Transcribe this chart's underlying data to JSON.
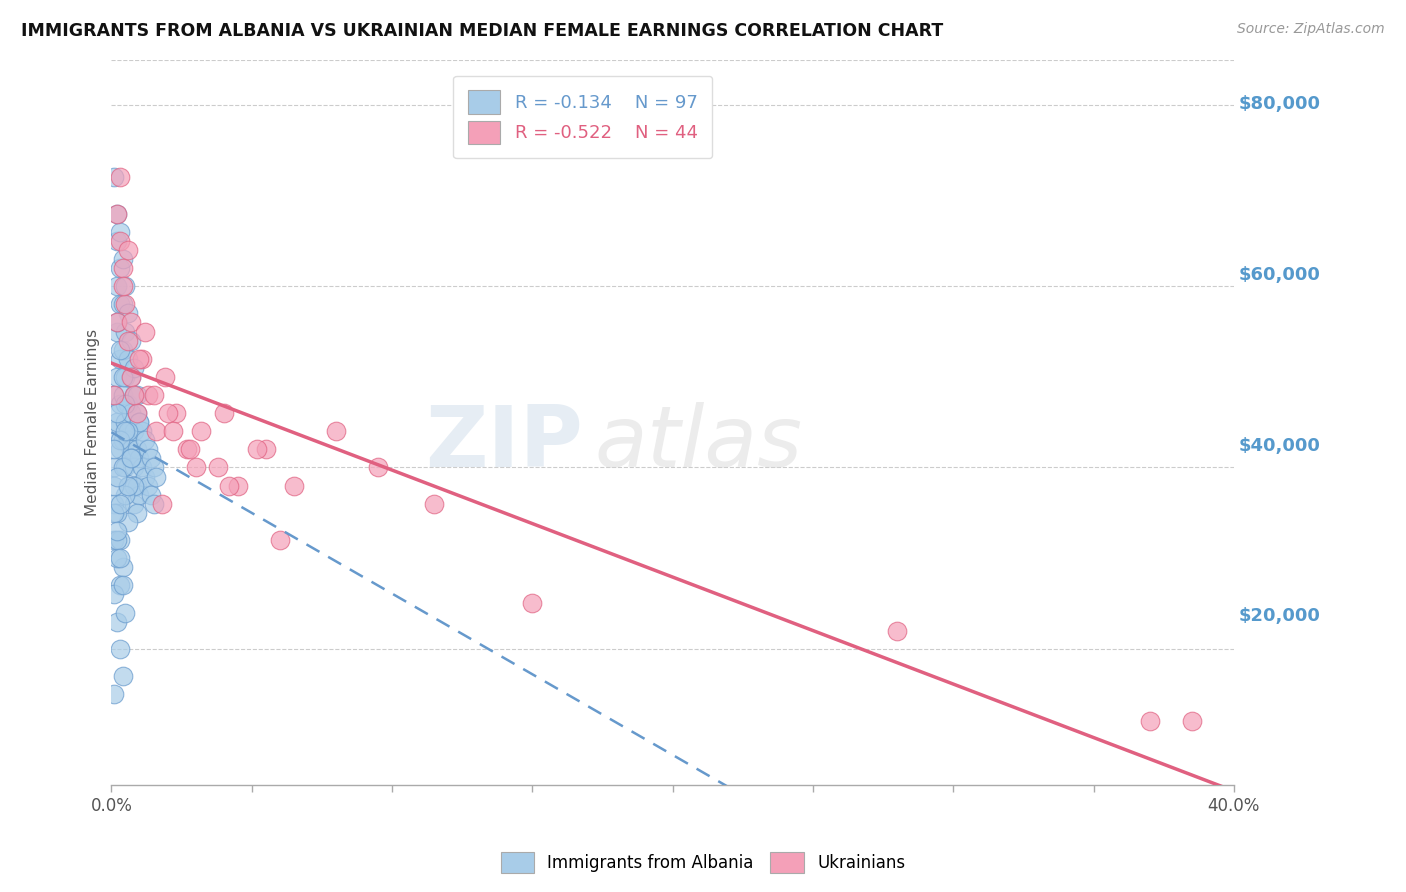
{
  "title": "IMMIGRANTS FROM ALBANIA VS UKRAINIAN MEDIAN FEMALE EARNINGS CORRELATION CHART",
  "source": "Source: ZipAtlas.com",
  "ylabel": "Median Female Earnings",
  "y_ticks": [
    0,
    20000,
    40000,
    60000,
    80000
  ],
  "y_tick_labels": [
    "",
    "$20,000",
    "$40,000",
    "$60,000",
    "$80,000"
  ],
  "x_min": 0.0,
  "x_max": 0.4,
  "y_min": 5000,
  "y_max": 85000,
  "albania_R": -0.134,
  "albania_N": 97,
  "ukraine_R": -0.522,
  "ukraine_N": 44,
  "albania_color": "#a8cce8",
  "ukraine_color": "#f4a0b8",
  "albania_line_color": "#6699cc",
  "ukraine_line_color": "#e06080",
  "legend_label_albania": "Immigrants from Albania",
  "legend_label_ukraine": "Ukrainians",
  "albania_x": [
    0.001,
    0.001,
    0.001,
    0.001,
    0.002,
    0.002,
    0.002,
    0.002,
    0.002,
    0.003,
    0.003,
    0.003,
    0.003,
    0.003,
    0.004,
    0.004,
    0.004,
    0.004,
    0.005,
    0.005,
    0.005,
    0.005,
    0.006,
    0.006,
    0.006,
    0.006,
    0.007,
    0.007,
    0.007,
    0.008,
    0.008,
    0.008,
    0.008,
    0.009,
    0.009,
    0.009,
    0.01,
    0.01,
    0.01,
    0.011,
    0.011,
    0.012,
    0.012,
    0.013,
    0.013,
    0.014,
    0.014,
    0.015,
    0.015,
    0.016,
    0.001,
    0.002,
    0.003,
    0.004,
    0.005,
    0.006,
    0.007,
    0.008,
    0.009,
    0.01,
    0.002,
    0.003,
    0.004,
    0.005,
    0.006,
    0.007,
    0.008,
    0.009,
    0.001,
    0.002,
    0.003,
    0.004,
    0.005,
    0.006,
    0.001,
    0.002,
    0.003,
    0.004,
    0.002,
    0.003,
    0.005,
    0.007,
    0.001,
    0.002,
    0.003,
    0.004,
    0.006,
    0.001,
    0.002,
    0.001,
    0.002,
    0.003,
    0.004,
    0.005,
    0.001,
    0.002,
    0.003
  ],
  "albania_y": [
    48000,
    44000,
    40000,
    36000,
    65000,
    60000,
    55000,
    50000,
    45000,
    62000,
    58000,
    52000,
    47000,
    42000,
    58000,
    53000,
    48000,
    43000,
    55000,
    50000,
    45000,
    40000,
    52000,
    47000,
    43000,
    38000,
    50000,
    46000,
    42000,
    48000,
    44000,
    40000,
    36000,
    46000,
    42000,
    38000,
    45000,
    41000,
    37000,
    44000,
    40000,
    43000,
    39000,
    42000,
    38000,
    41000,
    37000,
    40000,
    36000,
    39000,
    72000,
    68000,
    66000,
    63000,
    60000,
    57000,
    54000,
    51000,
    48000,
    45000,
    56000,
    53000,
    50000,
    47000,
    44000,
    41000,
    38000,
    35000,
    32000,
    46000,
    43000,
    40000,
    37000,
    34000,
    38000,
    35000,
    32000,
    29000,
    30000,
    27000,
    44000,
    41000,
    26000,
    23000,
    20000,
    17000,
    38000,
    35000,
    32000,
    15000,
    33000,
    30000,
    27000,
    24000,
    42000,
    39000,
    36000
  ],
  "ukraine_x": [
    0.001,
    0.002,
    0.003,
    0.004,
    0.005,
    0.006,
    0.007,
    0.009,
    0.011,
    0.013,
    0.016,
    0.019,
    0.023,
    0.027,
    0.032,
    0.038,
    0.045,
    0.055,
    0.065,
    0.08,
    0.095,
    0.115,
    0.002,
    0.004,
    0.007,
    0.01,
    0.015,
    0.022,
    0.03,
    0.04,
    0.052,
    0.003,
    0.006,
    0.012,
    0.02,
    0.028,
    0.042,
    0.06,
    0.008,
    0.018,
    0.15,
    0.28,
    0.37,
    0.385
  ],
  "ukraine_y": [
    48000,
    56000,
    65000,
    62000,
    58000,
    54000,
    50000,
    46000,
    52000,
    48000,
    44000,
    50000,
    46000,
    42000,
    44000,
    40000,
    38000,
    42000,
    38000,
    44000,
    40000,
    36000,
    68000,
    60000,
    56000,
    52000,
    48000,
    44000,
    40000,
    46000,
    42000,
    72000,
    64000,
    55000,
    46000,
    42000,
    38000,
    32000,
    48000,
    36000,
    25000,
    22000,
    12000,
    12000
  ]
}
